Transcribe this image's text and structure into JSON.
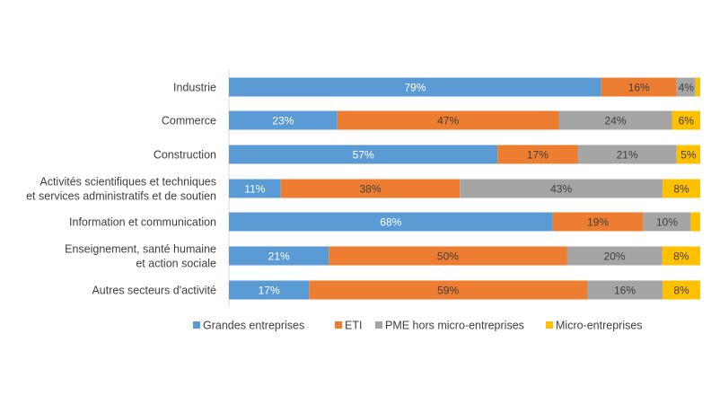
{
  "chart_data": {
    "type": "bar",
    "orientation": "horizontal",
    "stacked": "percent",
    "categories": [
      [
        "Industrie"
      ],
      [
        "Commerce"
      ],
      [
        "Construction"
      ],
      [
        "Activités scientifiques et techniques",
        "et services administratifs et de soutien"
      ],
      [
        "Information et communication"
      ],
      [
        "Enseignement, santé humaine",
        "et action sociale"
      ],
      [
        "Autres secteurs d'activité"
      ]
    ],
    "series": [
      {
        "name": "Grandes entreprises",
        "color": "#5b9bd5",
        "values": [
          79,
          23,
          57,
          11,
          68,
          21,
          17
        ],
        "labels": [
          "79%",
          "23%",
          "57%",
          "11%",
          "68%",
          "21%",
          "17%"
        ]
      },
      {
        "name": "ETI",
        "color": "#ed7d31",
        "values": [
          16,
          47,
          17,
          38,
          19,
          50,
          59
        ],
        "labels": [
          "16%",
          "47%",
          "17%",
          "38%",
          "19%",
          "50%",
          "59%"
        ]
      },
      {
        "name": "PME hors micro-entreprises",
        "color": "#a5a5a5",
        "values": [
          4,
          24,
          21,
          43,
          10,
          20,
          16
        ],
        "labels": [
          "4%",
          "24%",
          "21%",
          "43%",
          "10%",
          "20%",
          "16%"
        ]
      },
      {
        "name": "Micro-entreprises",
        "color": "#ffc000",
        "values": [
          1,
          6,
          5,
          8,
          2,
          8,
          8
        ],
        "labels": [
          "",
          "6%",
          "5%",
          "8%",
          "",
          "8%",
          "8%"
        ]
      }
    ],
    "xlim": [
      0,
      100
    ],
    "grid": false,
    "legend_position": "bottom"
  }
}
